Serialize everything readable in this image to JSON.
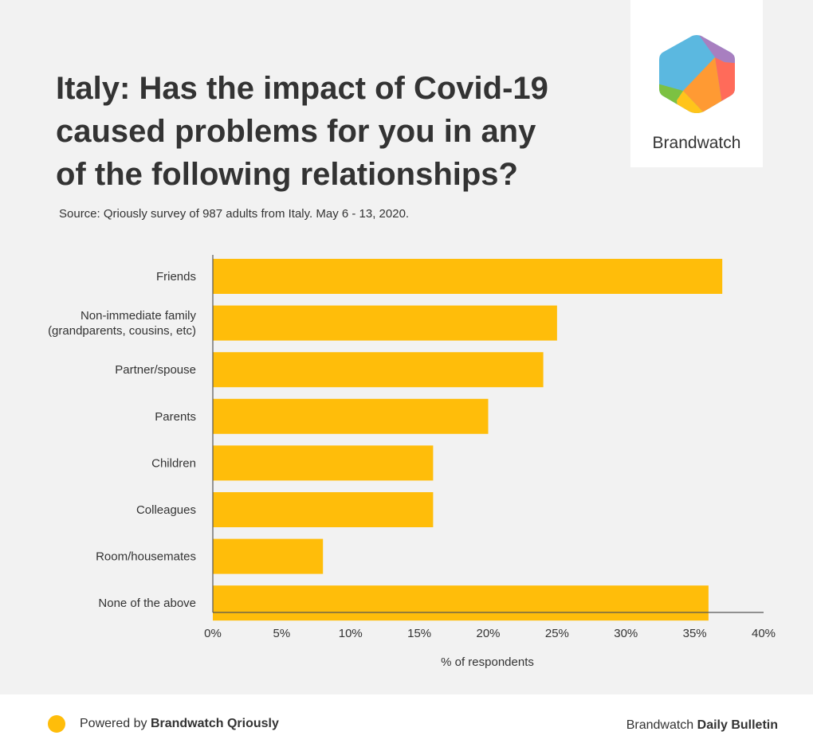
{
  "header": {
    "title_lines": [
      "Italy: Has the impact of Covid-19",
      "caused problems for you in any",
      "of the following relationships?"
    ],
    "source": "Source: Qriously survey of 987 adults from Italy. May 6 - 13, 2020."
  },
  "logo": {
    "name": "Brandwatch",
    "colors": [
      "#5bb8e0",
      "#a87fc0",
      "#ff6b5a",
      "#ff9a33",
      "#ffc41a",
      "#7cc142"
    ]
  },
  "footer": {
    "powered_prefix": "Powered by",
    "powered_brand": "Brandwatch Qriously",
    "right_prefix": "Brandwatch",
    "right_brand": "Daily Bulletin",
    "dot_color": "#ffbd0a"
  },
  "chart_data": {
    "type": "bar",
    "orientation": "horizontal",
    "title": "Italy: Has the impact of Covid-19 caused problems for you in any of the following relationships?",
    "categories": [
      [
        "Friends"
      ],
      [
        "Non-immediate family",
        "(grandparents, cousins, etc)"
      ],
      [
        "Partner/spouse"
      ],
      [
        "Parents"
      ],
      [
        "Children"
      ],
      [
        "Colleagues"
      ],
      [
        "Room/housemates"
      ],
      [
        "None of the above"
      ]
    ],
    "values": [
      37,
      25,
      24,
      20,
      16,
      16,
      8,
      36
    ],
    "xlabel": "% of respondents",
    "ylabel": "",
    "xlim": [
      0,
      40
    ],
    "xticks": [
      0,
      5,
      10,
      15,
      20,
      25,
      30,
      35,
      40
    ],
    "tick_suffix": "%",
    "bar_color": "#ffbd0a",
    "grid": false,
    "legend": "none"
  }
}
